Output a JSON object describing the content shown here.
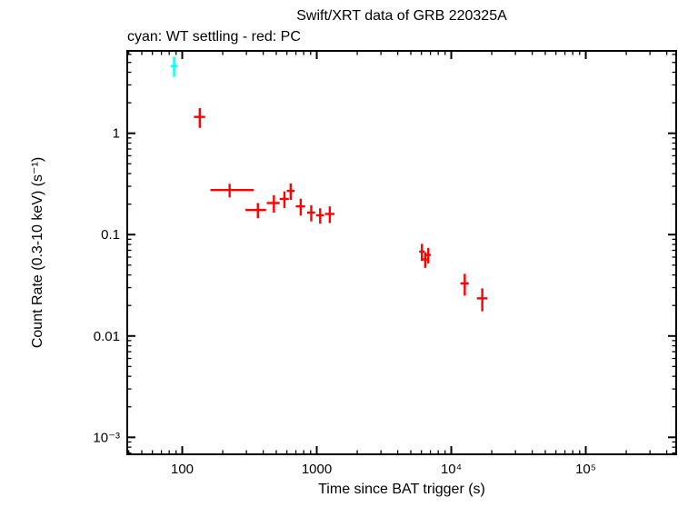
{
  "figure": {
    "background": "#ffffff",
    "frame_color": "#000000"
  },
  "chart_data": {
    "type": "scatter",
    "title": "Swift/XRT data of GRB 220325A",
    "subtitle": "cyan: WT settling - red: PC",
    "xlabel": "Time since BAT trigger (s)",
    "ylabel": "Count Rate (0.3-10 keV) (s⁻¹)",
    "x_scale": "log",
    "y_scale": "log",
    "xlim": [
      39,
      470000
    ],
    "ylim": [
      0.00068,
      6.5
    ],
    "grid": false,
    "x_major_ticks": [
      {
        "value": 100,
        "label": "100"
      },
      {
        "value": 1000,
        "label": "1000"
      },
      {
        "value": 10000,
        "label": "10⁴"
      },
      {
        "value": 100000,
        "label": "10⁵"
      }
    ],
    "y_major_ticks": [
      {
        "value": 1,
        "label": "1"
      },
      {
        "value": 0.1,
        "label": "0.1"
      },
      {
        "value": 0.01,
        "label": "0.01"
      },
      {
        "value": 0.001,
        "label": "10⁻³"
      }
    ],
    "legend": [
      {
        "label": "WT settling",
        "color": "#00ffff"
      },
      {
        "label": "PC",
        "color": "#ff0000"
      }
    ],
    "series": [
      {
        "name": "WT settling",
        "color": "#00ffff",
        "marker": "error-bar-cross",
        "points": [
          {
            "t": 87,
            "t_err_lo": 5,
            "t_err_hi": 5,
            "rate": 4.6,
            "rate_err_lo": 1.0,
            "rate_err_hi": 1.1
          }
        ]
      },
      {
        "name": "PC",
        "color": "#ff0000",
        "marker": "error-bar-cross",
        "points": [
          {
            "t": 135,
            "t_err_lo": 13,
            "t_err_hi": 13,
            "rate": 1.45,
            "rate_err_lo": 0.32,
            "rate_err_hi": 0.32
          },
          {
            "t": 225,
            "t_err_lo": 63,
            "t_err_hi": 115,
            "rate": 0.275,
            "rate_err_lo": 0.042,
            "rate_err_hi": 0.042
          },
          {
            "t": 365,
            "t_err_lo": 70,
            "t_err_hi": 55,
            "rate": 0.175,
            "rate_err_lo": 0.03,
            "rate_err_hi": 0.03
          },
          {
            "t": 480,
            "t_err_lo": 55,
            "t_err_hi": 50,
            "rate": 0.205,
            "rate_err_lo": 0.04,
            "rate_err_hi": 0.04
          },
          {
            "t": 575,
            "t_err_lo": 45,
            "t_err_hi": 45,
            "rate": 0.225,
            "rate_err_lo": 0.042,
            "rate_err_hi": 0.042
          },
          {
            "t": 640,
            "t_err_lo": 42,
            "t_err_hi": 45,
            "rate": 0.27,
            "rate_err_lo": 0.05,
            "rate_err_hi": 0.05
          },
          {
            "t": 760,
            "t_err_lo": 62,
            "t_err_hi": 60,
            "rate": 0.19,
            "rate_err_lo": 0.036,
            "rate_err_hi": 0.036
          },
          {
            "t": 910,
            "t_err_lo": 62,
            "t_err_hi": 62,
            "rate": 0.165,
            "rate_err_lo": 0.03,
            "rate_err_hi": 0.03
          },
          {
            "t": 1060,
            "t_err_lo": 70,
            "t_err_hi": 72,
            "rate": 0.155,
            "rate_err_lo": 0.027,
            "rate_err_hi": 0.027
          },
          {
            "t": 1250,
            "t_err_lo": 100,
            "t_err_hi": 105,
            "rate": 0.16,
            "rate_err_lo": 0.03,
            "rate_err_hi": 0.03
          },
          {
            "t": 6050,
            "t_err_lo": 280,
            "t_err_hi": 280,
            "rate": 0.068,
            "rate_err_lo": 0.013,
            "rate_err_hi": 0.013
          },
          {
            "t": 6400,
            "t_err_lo": 270,
            "t_err_hi": 270,
            "rate": 0.057,
            "rate_err_lo": 0.01,
            "rate_err_hi": 0.01
          },
          {
            "t": 6750,
            "t_err_lo": 300,
            "t_err_hi": 300,
            "rate": 0.063,
            "rate_err_lo": 0.011,
            "rate_err_hi": 0.011
          },
          {
            "t": 12600,
            "t_err_lo": 900,
            "t_err_hi": 900,
            "rate": 0.033,
            "rate_err_lo": 0.008,
            "rate_err_hi": 0.008
          },
          {
            "t": 17000,
            "t_err_lo": 1500,
            "t_err_hi": 1600,
            "rate": 0.0235,
            "rate_err_lo": 0.006,
            "rate_err_hi": 0.006
          }
        ]
      }
    ]
  }
}
